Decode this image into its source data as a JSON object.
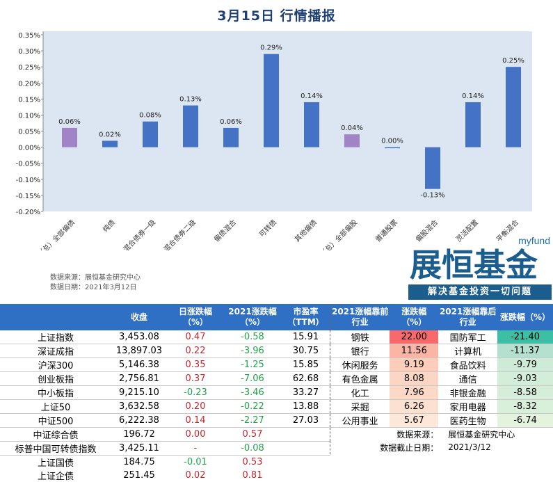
{
  "title": "3月15日 行情播报",
  "chart_data": {
    "type": "bar",
    "title": "3月15日 行情播报",
    "categories": [
      "（总）全部偏债",
      "纯债",
      "混合债券一级",
      "混合债券二级",
      "偏债混合",
      "可转债",
      "其他偏债",
      "（总）全部偏股",
      "普通股票",
      "偏股混合",
      "灵活配置",
      "平衡混合"
    ],
    "values": [
      0.06,
      0.02,
      0.08,
      0.13,
      0.06,
      0.29,
      0.14,
      0.04,
      0.0,
      -0.13,
      0.14,
      0.25
    ],
    "data_labels": [
      "0.06%",
      "0.02%",
      "0.08%",
      "0.13%",
      "0.06%",
      "0.29%",
      "0.14%",
      "0.04%",
      "0.00%",
      "-0.13%",
      "0.14%",
      "0.25%"
    ],
    "highlight": [
      true,
      false,
      false,
      false,
      false,
      false,
      false,
      true,
      false,
      false,
      false,
      false
    ],
    "ylim": [
      -0.2,
      0.35
    ],
    "yticks": [
      "-0.20%",
      "-0.15%",
      "-0.10%",
      "-0.05%",
      "0.00%",
      "0.05%",
      "0.10%",
      "0.15%",
      "0.20%",
      "0.25%",
      "0.30%",
      "0.35%"
    ],
    "unit": "%",
    "grid": false,
    "legend": "none",
    "colors": {
      "bar": "#4472C4",
      "highlight": "#A183C8",
      "plot_bg": "#DCE6F2"
    }
  },
  "notes": {
    "source": "数据来源：展恒基金研究中心",
    "date": "数据日期：2021年3月12日"
  },
  "logo": {
    "brand_en": "myfund",
    "brand_cn": "展恒基金",
    "slogan": "解决基金投资一切问题"
  },
  "index_table": {
    "headers": [
      "",
      "收盘",
      "日涨跌幅\n（%）",
      "2021涨跌幅\n（%）",
      "市盈率\n（TTM）"
    ],
    "rows": [
      [
        "上证指数",
        "3,453.08",
        "0.47",
        "-0.58",
        "15.91"
      ],
      [
        "深证成指",
        "13,897.03",
        "0.22",
        "-3.96",
        "30.75"
      ],
      [
        "沪深300",
        "5,146.38",
        "0.35",
        "-1.25",
        "15.85"
      ],
      [
        "创业板指",
        "2,756.81",
        "0.37",
        "-7.06",
        "62.68"
      ],
      [
        "中小板指",
        "9,215.10",
        "-0.23",
        "-3.46",
        "33.27"
      ],
      [
        "上证50",
        "3,632.58",
        "0.20",
        "-0.22",
        "13.88"
      ],
      [
        "中证500",
        "6,222.38",
        "0.14",
        "-2.27",
        "27.03"
      ],
      [
        "中证综合债",
        "196.72",
        "0.00",
        "0.57",
        ""
      ],
      [
        "标普中国可转债指数",
        "3,425.11",
        "-",
        "-0.08",
        ""
      ],
      [
        "上证国债",
        "184.75",
        "-0.01",
        "0.53",
        ""
      ],
      [
        "上证企债",
        "251.45",
        "0.02",
        "0.81",
        ""
      ]
    ]
  },
  "industry_table": {
    "headers": [
      "2021涨幅靠前\n行业",
      "涨跌幅\n（%）",
      "2021涨幅靠后\n行业",
      "涨跌幅（%）"
    ],
    "rows": [
      [
        "钢铁",
        "22.00",
        "国防军工",
        "-21.40"
      ],
      [
        "银行",
        "11.56",
        "计算机",
        "-11.37"
      ],
      [
        "休闲服务",
        "9.19",
        "食品饮料",
        "-9.79"
      ],
      [
        "有色金属",
        "8.08",
        "通信",
        "-9.03"
      ],
      [
        "化工",
        "7.96",
        "非银金融",
        "-8.58"
      ],
      [
        "采掘",
        "6.26",
        "家用电器",
        "-8.32"
      ],
      [
        "公用事业",
        "5.67",
        "医药生物",
        "-6.74"
      ]
    ],
    "top_colors": [
      "#F8696B",
      "#FBB5A5",
      "#FBCDBA",
      "#FCD6C4",
      "#FCD9C7",
      "#FCE1D1",
      "#FDE7D9"
    ],
    "bottom_colors": [
      "#3DBFA6",
      "#B4E1CF",
      "#CDEBD7",
      "#D2EDD8",
      "#D6EED9",
      "#D8EFDA",
      "#E4F3DE"
    ],
    "source_label": "数据来源：",
    "source_value": "展恒基金研究中心",
    "date_label": "数据截止日期：",
    "date_value": "2021/3/12"
  }
}
